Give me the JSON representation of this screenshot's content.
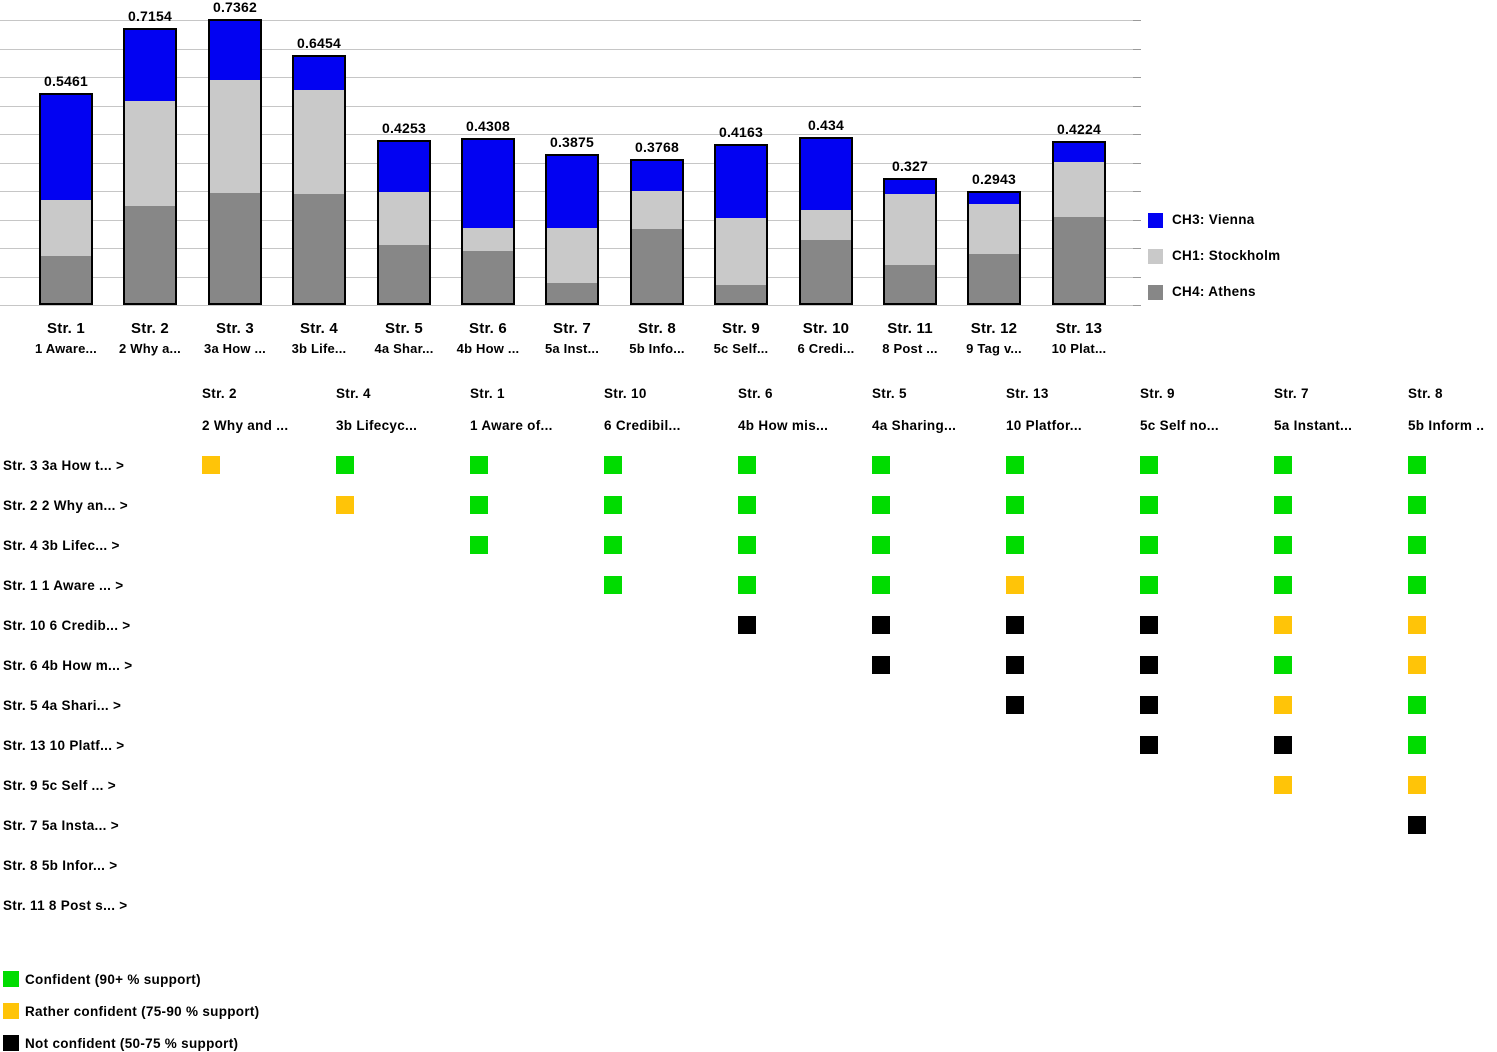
{
  "chart_data": [
    {
      "type": "bar",
      "stacked": true,
      "title": "",
      "xlabel": "",
      "ylabel": "",
      "ylim": [
        0,
        0.79
      ],
      "grid": true,
      "legend_position": "right",
      "categories": [
        "Str. 1",
        "Str. 2",
        "Str. 3",
        "Str. 4",
        "Str. 5",
        "Str. 6",
        "Str. 7",
        "Str. 8",
        "Str. 9",
        "Str. 10",
        "Str. 11",
        "Str. 12",
        "Str. 13"
      ],
      "category_descs": [
        "1 Aware...",
        "2 Why a...",
        "3a How ...",
        "3b Life...",
        "4a Shar...",
        "4b How ...",
        "5a Inst...",
        "5b Info...",
        "5c Self...",
        "6 Credi...",
        "8 Post ...",
        "9 Tag v...",
        "10 Plat..."
      ],
      "totals": [
        "0.5461",
        "0.7154",
        "0.7362",
        "0.6454",
        "0.4253",
        "0.4308",
        "0.3875",
        "0.3768",
        "0.4163",
        "0.434",
        "0.327",
        "0.2943",
        "0.4224"
      ],
      "series": [
        {
          "name": "CH4: Athens",
          "color": "#878787",
          "values": [
            0.124,
            0.254,
            0.286,
            0.286,
            0.154,
            0.137,
            0.054,
            0.196,
            0.047,
            0.168,
            0.102,
            0.132,
            0.226
          ]
        },
        {
          "name": "CH1: Stockholm",
          "color": "#c9c9c9",
          "values": [
            0.146,
            0.275,
            0.297,
            0.272,
            0.138,
            0.06,
            0.144,
            0.102,
            0.179,
            0.077,
            0.189,
            0.132,
            0.147
          ]
        },
        {
          "name": "CH3: Vienna",
          "color": "#0202f2",
          "values": [
            0.276,
            0.186,
            0.153,
            0.087,
            0.133,
            0.234,
            0.19,
            0.079,
            0.19,
            0.189,
            0.036,
            0.03,
            0.049
          ]
        }
      ],
      "legend": [
        {
          "label": "CH3: Vienna",
          "color": "#0202f2"
        },
        {
          "label": "CH1: Stockholm",
          "color": "#c9c9c9"
        },
        {
          "label": "CH4: Athens",
          "color": "#878787"
        }
      ]
    },
    {
      "type": "heatmap",
      "columns": [
        {
          "name": "Str. 2",
          "desc": "2 Why and ..."
        },
        {
          "name": "Str. 4",
          "desc": "3b Lifecyc..."
        },
        {
          "name": "Str. 1",
          "desc": "1 Aware of..."
        },
        {
          "name": "Str. 10",
          "desc": "6 Credibil..."
        },
        {
          "name": "Str. 6",
          "desc": "4b How mis..."
        },
        {
          "name": "Str. 5",
          "desc": "4a Sharing..."
        },
        {
          "name": "Str. 13",
          "desc": "10 Platfor..."
        },
        {
          "name": "Str. 9",
          "desc": "5c Self no..."
        },
        {
          "name": "Str. 7",
          "desc": "5a Instant..."
        },
        {
          "name": "Str. 8",
          "desc": "5b Inform .."
        }
      ],
      "rows": [
        {
          "label": "Str. 3 3a How t... >",
          "cells": [
            "Y",
            "G",
            "G",
            "G",
            "G",
            "G",
            "G",
            "G",
            "G",
            "G"
          ]
        },
        {
          "label": "Str. 2 2 Why an... >",
          "cells": [
            "",
            "Y",
            "G",
            "G",
            "G",
            "G",
            "G",
            "G",
            "G",
            "G"
          ]
        },
        {
          "label": "Str. 4 3b Lifec... >",
          "cells": [
            "",
            "",
            "G",
            "G",
            "G",
            "G",
            "G",
            "G",
            "G",
            "G"
          ]
        },
        {
          "label": "Str. 1 1 Aware ... >",
          "cells": [
            "",
            "",
            "",
            "G",
            "G",
            "G",
            "Y",
            "G",
            "G",
            "G"
          ]
        },
        {
          "label": "Str. 10 6 Credib... >",
          "cells": [
            "",
            "",
            "",
            "",
            "B",
            "B",
            "B",
            "B",
            "Y",
            "Y"
          ]
        },
        {
          "label": "Str. 6 4b How m... >",
          "cells": [
            "",
            "",
            "",
            "",
            "",
            "B",
            "B",
            "B",
            "G",
            "Y"
          ]
        },
        {
          "label": "Str. 5 4a Shari... >",
          "cells": [
            "",
            "",
            "",
            "",
            "",
            "",
            "B",
            "B",
            "Y",
            "G"
          ]
        },
        {
          "label": "Str. 13 10 Platf... >",
          "cells": [
            "",
            "",
            "",
            "",
            "",
            "",
            "",
            "B",
            "B",
            "G"
          ]
        },
        {
          "label": "Str. 9 5c Self ... >",
          "cells": [
            "",
            "",
            "",
            "",
            "",
            "",
            "",
            "",
            "Y",
            "Y"
          ]
        },
        {
          "label": "Str. 7 5a Insta... >",
          "cells": [
            "",
            "",
            "",
            "",
            "",
            "",
            "",
            "",
            "",
            "B"
          ]
        },
        {
          "label": "Str. 8 5b Infor... >",
          "cells": [
            "",
            "",
            "",
            "",
            "",
            "",
            "",
            "",
            "",
            ""
          ]
        },
        {
          "label": "Str. 11 8 Post s... >",
          "cells": [
            "",
            "",
            "",
            "",
            "",
            "",
            "",
            "",
            "",
            ""
          ]
        }
      ],
      "cell_colors": {
        "G": "#00dc00",
        "Y": "#ffc408",
        "B": "#000000"
      },
      "legend": [
        {
          "key": "G",
          "label": "Confident (90+ % support)",
          "color": "#00dc00"
        },
        {
          "key": "Y",
          "label": "Rather confident (75-90 % support)",
          "color": "#ffc408"
        },
        {
          "key": "B",
          "label": "Not confident (50-75 % support)",
          "color": "#000000"
        }
      ]
    }
  ],
  "colors": {
    "gridline": "#c6c6c6",
    "bar_border": "#000000",
    "text": "#000000"
  }
}
